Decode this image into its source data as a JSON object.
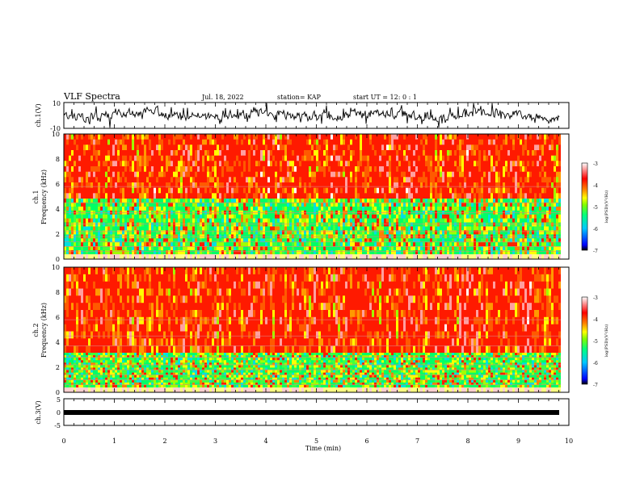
{
  "header": {
    "title": "VLF Spectra",
    "date": "Jul. 18, 2022",
    "station": "station= KAP",
    "start": "start  UT =   12: 0  : 1"
  },
  "chart_data": [
    {
      "type": "line",
      "panel": "ch1-waveform",
      "ylabel": "ch.1(V)",
      "ylim": [
        -10,
        10
      ],
      "yticks": [
        "10",
        "-10"
      ],
      "xlim": [
        0,
        10
      ]
    },
    {
      "type": "heatmap",
      "panel": "ch1-spectrogram",
      "ylabel": "ch.1\nFrequency (kHz)",
      "ylim": [
        0,
        10
      ],
      "yticks": [
        "0",
        "2",
        "4",
        "6",
        "8",
        "10"
      ],
      "xlim": [
        0,
        10
      ],
      "colorbar": {
        "label": "log(PSD)(V²/Hz)",
        "range": [
          -7,
          -3
        ],
        "ticks": [
          "-3",
          "-4",
          "-5",
          "-6",
          "-7"
        ],
        "colors": [
          "#000000",
          "#0000ff",
          "#00c8ff",
          "#00ff80",
          "#80ff00",
          "#ffff00",
          "#ff8000",
          "#ff0000",
          "#ffffff"
        ]
      }
    },
    {
      "type": "heatmap",
      "panel": "ch2-spectrogram",
      "ylabel": "ch.2\nFrequency (kHz)",
      "ylim": [
        0,
        10
      ],
      "yticks": [
        "0",
        "2",
        "4",
        "6",
        "8",
        "10"
      ],
      "xlim": [
        0,
        10
      ],
      "colorbar": {
        "label": "log(PSD)(V²/Hz)",
        "range": [
          -7,
          -3
        ],
        "ticks": [
          "-3",
          "-4",
          "-5",
          "-6",
          "-7"
        ],
        "colors": [
          "#000000",
          "#0000ff",
          "#00c8ff",
          "#00ff80",
          "#80ff00",
          "#ffff00",
          "#ff8000",
          "#ff0000",
          "#ffffff"
        ]
      }
    },
    {
      "type": "line",
      "panel": "ch3-waveform",
      "ylabel": "ch.3(V)",
      "ylim": [
        -5,
        5
      ],
      "yticks": [
        "5",
        "0",
        "-5"
      ],
      "xlim": [
        0,
        10
      ],
      "xlabel": "Time (min)",
      "xticks": [
        "0",
        "1",
        "2",
        "3",
        "4",
        "5",
        "6",
        "7",
        "8",
        "9",
        "10"
      ]
    }
  ]
}
